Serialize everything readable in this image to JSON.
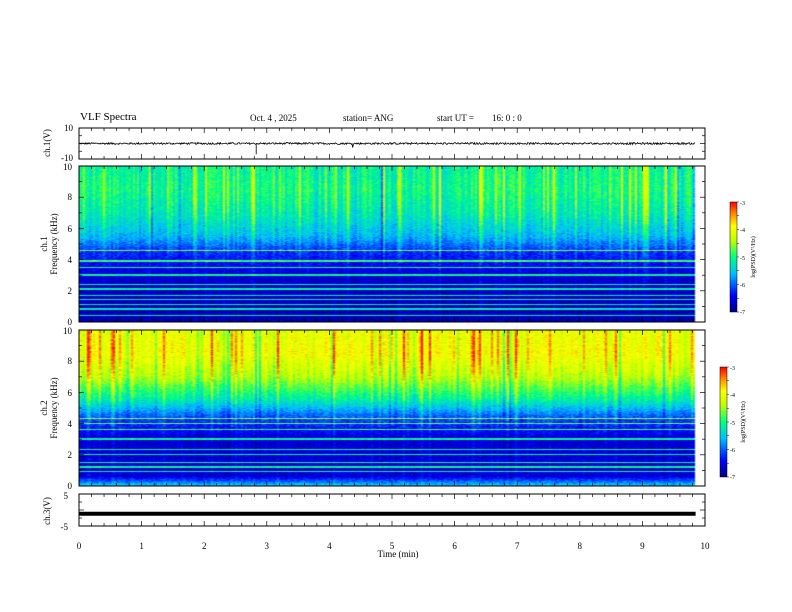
{
  "header": {
    "title": "VLF Spectra",
    "date": "Oct. 4  , 2025",
    "station": "station= ANG",
    "start_label": "start  UT  =",
    "start_value": "16: 0  : 0"
  },
  "chart_data": [
    {
      "id": "ch1-waveform",
      "type": "line",
      "ylabel": "ch.1(V)",
      "ylim": [
        -10,
        10
      ],
      "yticks": [
        "10",
        "-10"
      ],
      "xlim": [
        0,
        10
      ],
      "baseline": 0,
      "noise_amplitude": 0.6
    },
    {
      "id": "ch1-spectrogram",
      "type": "heatmap",
      "ylabel": "ch.1\nFrequency  (kHz)",
      "ylabel_line1": "ch.1",
      "ylabel_line2": "Frequency  (kHz)",
      "ylim": [
        0,
        10
      ],
      "yticks": [
        "0",
        "2",
        "4",
        "6",
        "8",
        "10"
      ],
      "xlim": [
        0,
        10
      ],
      "data_end_min": 9.85,
      "colorbar": {
        "label": "log(PSD)(V²/Hz)",
        "range": [
          -7,
          -3
        ],
        "ticks": [
          "-3",
          "-4",
          "-5",
          "-6",
          "-7"
        ]
      },
      "psd_profile_khz": [
        [
          0,
          -6.8
        ],
        [
          3,
          -6.6
        ],
        [
          4.5,
          -6.2
        ],
        [
          5.5,
          -5.6
        ],
        [
          7,
          -5.2
        ],
        [
          8.5,
          -5.0
        ],
        [
          10,
          -5.1
        ]
      ],
      "tones_khz": [
        0.4,
        0.8,
        1.1,
        1.4,
        1.7,
        2.1,
        2.4,
        3.0,
        3.5,
        3.9,
        4.6
      ]
    },
    {
      "id": "ch2-spectrogram",
      "type": "heatmap",
      "ylabel": "ch.2\nFrequency  (kHz)",
      "ylabel_line1": "ch.2",
      "ylabel_line2": "Frequency  (kHz)",
      "ylim": [
        0,
        10
      ],
      "yticks": [
        "0",
        "2",
        "4",
        "6",
        "8",
        "10"
      ],
      "xlim": [
        0,
        10
      ],
      "data_end_min": 9.85,
      "colorbar": {
        "label": "log(PSD)(V²/Hz)",
        "range": [
          -7,
          -3
        ],
        "ticks": [
          "-3",
          "-4",
          "-5",
          "-6",
          "-7"
        ]
      },
      "psd_profile_khz": [
        [
          0,
          -5.5
        ],
        [
          0.6,
          -6.6
        ],
        [
          3,
          -6.6
        ],
        [
          4.5,
          -6.0
        ],
        [
          5.5,
          -5.2
        ],
        [
          7,
          -4.4
        ],
        [
          8.5,
          -4.0
        ],
        [
          10,
          -4.1
        ]
      ],
      "tones_khz": [
        0.9,
        1.2,
        1.5,
        2.0,
        2.3,
        3.0,
        3.6,
        4.0,
        4.3
      ]
    },
    {
      "id": "ch3-waveform",
      "type": "line",
      "ylabel": "ch.3(V)",
      "ylim": [
        -5,
        5
      ],
      "yticks": [
        "5",
        "-5"
      ],
      "xlim": [
        0,
        10
      ],
      "baseline": -1.2,
      "noise_amplitude": 0.05
    }
  ],
  "x_axis": {
    "label": "Time  (min)",
    "ticks": [
      "0",
      "1",
      "2",
      "3",
      "4",
      "5",
      "6",
      "7",
      "8",
      "9",
      "10"
    ]
  },
  "colors": {
    "axis": "#000000",
    "background": "#ffffff"
  }
}
